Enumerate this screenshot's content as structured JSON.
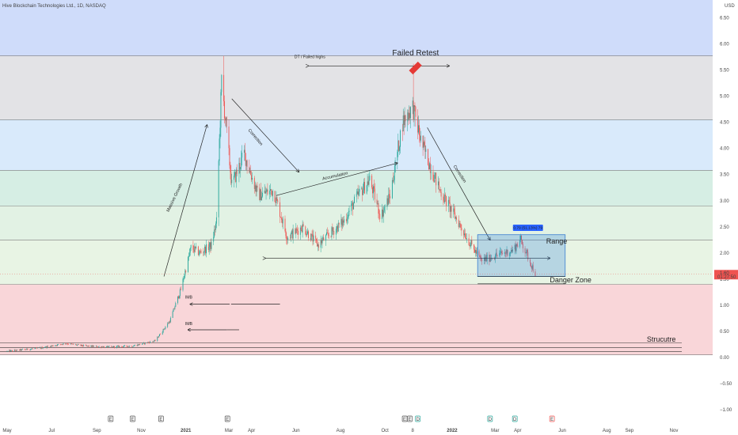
{
  "header": {
    "symbol_title": "Hive Blockchain Technologies Ltd., 1D, NASDAQ",
    "currency": "USD"
  },
  "price_tags": {
    "last": "1.60",
    "countdown": "01:27:50"
  },
  "event_markers": [
    "E",
    "E",
    "E",
    "E",
    "E",
    "E",
    "D",
    "D",
    "D",
    "E"
  ],
  "chart_data": {
    "type": "candlestick",
    "title": "Hive Blockchain Technologies Ltd., 1D, NASDAQ",
    "y_unit": "USD",
    "ylim": [
      -1.1,
      7.0
    ],
    "yticks": [
      -1.0,
      -0.5,
      0.0,
      0.5,
      1.0,
      1.5,
      2.0,
      2.5,
      3.0,
      3.5,
      4.0,
      4.5,
      5.0,
      5.5,
      6.0,
      6.5
    ],
    "ytick_labels": [
      "−1.00",
      "−0.50",
      "0.00",
      "0.50",
      "1.00",
      "1.50",
      "2.00",
      "2.50",
      "3.00",
      "3.50",
      "4.00",
      "4.50",
      "5.00",
      "5.50",
      "6.00",
      "6.50"
    ],
    "xlim": [
      "2020-05-01",
      "2022-11-30"
    ],
    "xticks": [
      {
        "date": "2020-05-01",
        "label": "May"
      },
      {
        "date": "2020-07-01",
        "label": "Jul"
      },
      {
        "date": "2020-09-01",
        "label": "Sep"
      },
      {
        "date": "2020-11-01",
        "label": "Nov"
      },
      {
        "date": "2021-01-01",
        "label": "2021"
      },
      {
        "date": "2021-03-01",
        "label": "Mar"
      },
      {
        "date": "2021-04-01",
        "label": "Apr"
      },
      {
        "date": "2021-06-01",
        "label": "Jun"
      },
      {
        "date": "2021-08-01",
        "label": "Aug"
      },
      {
        "date": "2021-10-01",
        "label": "Oct"
      },
      {
        "date": "2021-11-08",
        "label": "8"
      },
      {
        "date": "2022-01-01",
        "label": "2022"
      },
      {
        "date": "2022-03-01",
        "label": "Mar"
      },
      {
        "date": "2022-04-01",
        "label": "Apr"
      },
      {
        "date": "2022-06-01",
        "label": "Jun"
      },
      {
        "date": "2022-08-01",
        "label": "Aug"
      },
      {
        "date": "2022-09-01",
        "label": "Sep"
      },
      {
        "date": "2022-11-01",
        "label": "Nov"
      }
    ],
    "zone_levels": [
      {
        "from": 5.77,
        "to": 7.0,
        "color": "#cfdcfa"
      },
      {
        "from": 4.55,
        "to": 5.77,
        "color": "#e3e3e6"
      },
      {
        "from": 3.58,
        "to": 4.55,
        "color": "#d9eafb"
      },
      {
        "from": 2.9,
        "to": 3.58,
        "color": "#d6eee4"
      },
      {
        "from": 2.25,
        "to": 2.9,
        "color": "#e2f2e4"
      },
      {
        "from": 1.4,
        "to": 2.25,
        "color": "#e8f4e4"
      },
      {
        "from": 0.05,
        "to": 1.4,
        "color": "#f9d6d9"
      }
    ],
    "level_lines": [
      5.77,
      4.55,
      3.58,
      2.9,
      2.25,
      1.4,
      0.05
    ],
    "candle_anchors": [
      [
        "2020-05-01",
        0.12
      ],
      [
        "2020-06-15",
        0.18
      ],
      [
        "2020-07-20",
        0.27
      ],
      [
        "2020-08-15",
        0.22
      ],
      [
        "2020-09-15",
        0.2
      ],
      [
        "2020-10-20",
        0.22
      ],
      [
        "2020-11-20",
        0.32
      ],
      [
        "2020-12-10",
        0.7
      ],
      [
        "2020-12-25",
        1.3
      ],
      [
        "2021-01-08",
        2.1
      ],
      [
        "2021-01-20",
        2.0
      ],
      [
        "2021-02-05",
        2.15
      ],
      [
        "2021-02-12",
        2.6
      ],
      [
        "2021-02-19",
        5.3
      ],
      [
        "2021-03-05",
        3.3
      ],
      [
        "2021-03-22",
        3.9
      ],
      [
        "2021-04-10",
        3.1
      ],
      [
        "2021-05-01",
        3.2
      ],
      [
        "2021-05-20",
        2.3
      ],
      [
        "2021-06-10",
        2.5
      ],
      [
        "2021-07-01",
        2.15
      ],
      [
        "2021-07-20",
        2.4
      ],
      [
        "2021-08-05",
        2.6
      ],
      [
        "2021-08-25",
        3.1
      ],
      [
        "2021-09-10",
        3.4
      ],
      [
        "2021-09-25",
        2.7
      ],
      [
        "2021-10-08",
        3.1
      ],
      [
        "2021-10-25",
        4.5
      ],
      [
        "2021-11-08",
        4.8
      ],
      [
        "2021-11-20",
        4.1
      ],
      [
        "2021-12-15",
        3.2
      ],
      [
        "2022-01-05",
        2.7
      ],
      [
        "2022-01-25",
        2.2
      ],
      [
        "2022-02-10",
        1.85
      ],
      [
        "2022-03-01",
        1.95
      ],
      [
        "2022-03-25",
        2.05
      ],
      [
        "2022-04-05",
        2.25
      ],
      [
        "2022-04-25",
        1.6
      ]
    ],
    "annotations": [
      {
        "text": "Failed Retest",
        "x": "2021-11-12",
        "y": 5.78
      },
      {
        "text": "DT / Failed highs",
        "x": "2021-06-20",
        "y": 5.73
      },
      {
        "text": "Correction",
        "x": "2021-04-05",
        "y": 4.2
      },
      {
        "text": "Accumulation",
        "x": "2021-07-25",
        "y": 3.45
      },
      {
        "text": "Massive Growth",
        "x": "2020-12-18",
        "y": 3.05
      },
      {
        "text": "Correction",
        "x": "2022-01-10",
        "y": 3.5
      },
      {
        "text": "0.79 (51.13%) 79",
        "x": "2022-04-15",
        "y": 2.46
      },
      {
        "text": "Range",
        "x": "2022-05-10",
        "y": 2.18
      },
      {
        "text": "Danger Zone",
        "x": "2022-05-15",
        "y": 1.44
      },
      {
        "text": "IMB",
        "x": "2021-01-05",
        "y": 1.13
      },
      {
        "text": "IMB",
        "x": "2021-01-05",
        "y": 0.62
      },
      {
        "text": "Strucutre",
        "x": "2022-09-25",
        "y": 0.3
      }
    ]
  }
}
